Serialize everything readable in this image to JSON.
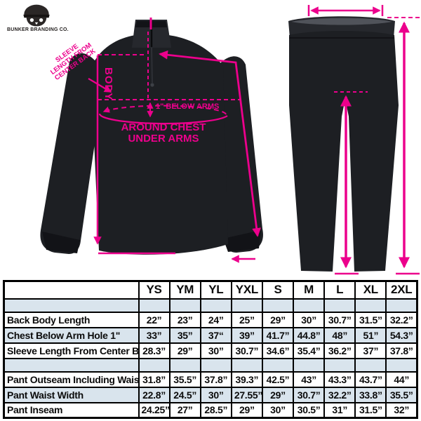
{
  "brand": {
    "logo_text": "BUNKER BRANDING CO."
  },
  "diagram": {
    "accent": "#EC008C",
    "jacket": {
      "sleeve_note": [
        "SLEEVE",
        "LENGTH FROM",
        "CENTER BACK"
      ],
      "body_label": "BODY",
      "below_arms_label": "1\" BELOW ARMS",
      "around_chest_line1": "AROUND CHEST",
      "around_chest_line2": "UNDER ARMS"
    }
  },
  "table": {
    "columns": [
      "YS",
      "YM",
      "YL",
      "YXL",
      "S",
      "M",
      "L",
      "XL",
      "2XL"
    ],
    "rows": [
      {
        "spacer": true,
        "shaded": true,
        "label": "",
        "values": [
          "",
          "",
          "",
          "",
          "",
          "",
          "",
          "",
          ""
        ]
      },
      {
        "spacer": false,
        "shaded": false,
        "label": "Back Body Length",
        "values": [
          "22”",
          "23”",
          "24”",
          "25”",
          "29”",
          "30”",
          "30.7”",
          "31.5”",
          "32.2”"
        ]
      },
      {
        "spacer": false,
        "shaded": true,
        "label": "Chest Below Arm Hole 1\"",
        "values": [
          "33”",
          "35”",
          "37“",
          "39”",
          "41.7”",
          "44.8”",
          "48”",
          "51”",
          "54.3”"
        ]
      },
      {
        "spacer": false,
        "shaded": false,
        "label": "Sleeve Length From Center Back",
        "values": [
          "28.3”",
          "29”",
          "30”",
          "30.7”",
          "34.6”",
          "35.4”",
          "36.2”",
          "37”",
          "37.8”"
        ]
      },
      {
        "spacer": true,
        "shaded": true,
        "label": "",
        "values": [
          "",
          "",
          "",
          "",
          "",
          "",
          "",
          "",
          ""
        ]
      },
      {
        "spacer": false,
        "shaded": false,
        "label": "Pant Outseam Including Waist",
        "values": [
          "31.8”",
          "35.5”",
          "37.8”",
          "39.3”",
          "42.5”",
          "43”",
          "43.3”",
          "43.7”",
          "44”"
        ]
      },
      {
        "spacer": false,
        "shaded": true,
        "label": "Pant Waist Width",
        "values": [
          "22.8”",
          "24.5”",
          "30”",
          "27.55”",
          "29”",
          "30.7”",
          "32.2”",
          "33.8”",
          "35.5”"
        ]
      },
      {
        "spacer": false,
        "shaded": false,
        "label": "Pant Inseam",
        "values": [
          "24.25”",
          "27”",
          "28.5”",
          "29”",
          "30”",
          "30.5”",
          "31”",
          "31.5”",
          "32”"
        ]
      }
    ]
  }
}
